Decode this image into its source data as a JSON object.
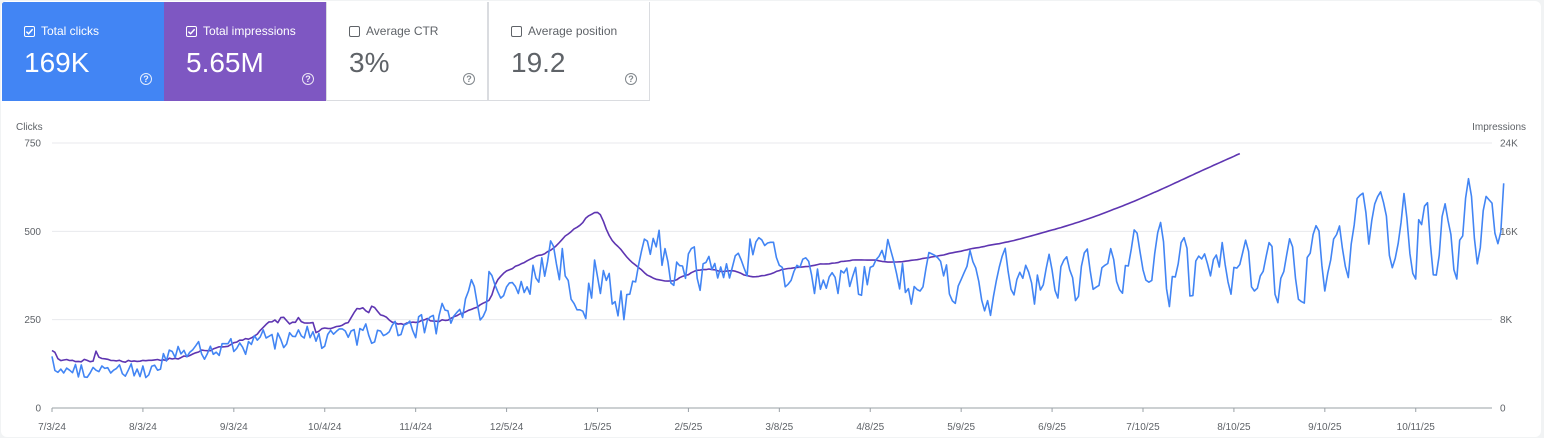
{
  "metrics": [
    {
      "label": "Total clicks",
      "value": "169K",
      "checked": true
    },
    {
      "label": "Total impressions",
      "value": "5.65M",
      "checked": true
    },
    {
      "label": "Average CTR",
      "value": "3%",
      "checked": false
    },
    {
      "label": "Average position",
      "value": "19.2",
      "checked": false
    }
  ],
  "colors": {
    "clicks": "#4285f4",
    "impressions": "#5e35b1",
    "clicks_card": "#4285f4",
    "impressions_card": "#7e57c2"
  },
  "chart_data": {
    "type": "line",
    "left_axis_title": "Clicks",
    "right_axis_title": "Impressions",
    "y_left": {
      "ticks": [
        0,
        250,
        500,
        750
      ],
      "labels": [
        "0",
        "250",
        "500",
        "750"
      ],
      "range": [
        0,
        750
      ]
    },
    "y_right": {
      "ticks": [
        0,
        8000,
        16000,
        24000
      ],
      "labels": [
        "0",
        "8K",
        "16K",
        "24K"
      ],
      "range": [
        0,
        24000
      ]
    },
    "x_labels": [
      "7/3/24",
      "8/3/24",
      "9/3/24",
      "10/4/24",
      "11/4/24",
      "12/5/24",
      "1/5/25",
      "2/5/25",
      "3/8/25",
      "4/8/25",
      "5/9/25",
      "6/9/25",
      "7/10/25",
      "8/10/25",
      "9/10/25",
      "10/11/25"
    ],
    "x_range": [
      "7/3/24",
      "11/6/25"
    ],
    "grid": true,
    "series": [
      {
        "name": "Clicks",
        "axis": "left",
        "x_start": "7/3/24",
        "step_days": 1,
        "values": [
          146,
          106,
          101,
          110,
          99,
          113,
          107,
          100,
          123,
          88,
          122,
          88,
          87,
          99,
          115,
          107,
          103,
          119,
          112,
          114,
          99,
          107,
          112,
          122,
          97,
          90,
          107,
          125,
          91,
          110,
          89,
          119,
          86,
          94,
          118,
          121,
          107,
          110,
          154,
          133,
          164,
          160,
          143,
          174,
          153,
          163,
          145,
          158,
          165,
          176,
          188,
          153,
          138,
          154,
          175,
          152,
          158,
          149,
          182,
          182,
          182,
          196,
          160,
          169,
          184,
          172,
          152,
          188,
          180,
          205,
          192,
          201,
          221,
          198,
          203,
          208,
          167,
          212,
          194,
          171,
          181,
          213,
          203,
          202,
          221,
          204,
          198,
          231,
          199,
          216,
          189,
          211,
          169,
          175,
          208,
          220,
          209,
          217,
          224,
          224,
          218,
          200,
          218,
          222,
          178,
          225,
          220,
          238,
          206,
          183,
          187,
          220,
          218,
          205,
          209,
          216,
          234,
          245,
          205,
          208,
          235,
          238,
          246,
          219,
          199,
          258,
          264,
          213,
          249,
          258,
          262,
          210,
          262,
          296,
          277,
          275,
          240,
          260,
          270,
          279,
          256,
          309,
          331,
          363,
          344,
          294,
          249,
          259,
          278,
          386,
          375,
          349,
          329,
          311,
          318,
          343,
          354,
          355,
          344,
          324,
          358,
          327,
          343,
          322,
          404,
          368,
          356,
          425,
          373,
          415,
          473,
          458,
          408,
          363,
          451,
          374,
          361,
          308,
          296,
          278,
          278,
          274,
          253,
          353,
          311,
          419,
          372,
          324,
          389,
          361,
          381,
          294,
          301,
          261,
          331,
          250,
          321,
          322,
          359,
          357,
          405,
          444,
          478,
          472,
          435,
          480,
          456,
          503,
          404,
          451,
          414,
          354,
          347,
          413,
          403,
          402,
          367,
          436,
          451,
          456,
          367,
          333,
          408,
          412,
          429,
          392,
          409,
          368,
          399,
          369,
          408,
          368,
          399,
          431,
          438,
          419,
          396,
          374,
          478,
          434,
          470,
          482,
          476,
          460,
          467,
          469,
          469,
          426,
          404,
          398,
          343,
          350,
          361,
          387,
          404,
          398,
          421,
          425,
          415,
          376,
          324,
          393,
          336,
          362,
          339,
          371,
          383,
          370,
          324,
          389,
          382,
          396,
          344,
          373,
          398,
          322,
          319,
          400,
          349,
          398,
          402,
          420,
          429,
          446,
          419,
          477,
          446,
          416,
          380,
          337,
          409,
          327,
          338,
          294,
          344,
          335,
          331,
          343,
          396,
          440,
          436,
          432,
          425,
          415,
          374,
          405,
          323,
          303,
          296,
          345,
          364,
          383,
          401,
          446,
          414,
          396,
          358,
          305,
          275,
          304,
          262,
          315,
          361,
          399,
          430,
          452,
          387,
          336,
          320,
          364,
          384,
          367,
          404,
          385,
          354,
          294,
          376,
          334,
          349,
          395,
          435,
          390,
          333,
          311,
          400,
          418,
          428,
          391,
          369,
          304,
          316,
          401,
          439,
          450,
          388,
          336,
          342,
          347,
          397,
          404,
          409,
          451,
          420,
          358,
          335,
          325,
          403,
          402,
          450,
          504,
          495,
          441,
          391,
          362,
          356,
          361,
          437,
          496,
          525,
          471,
          338,
          287,
          372,
          371,
          408,
          468,
          482,
          452,
          317,
          318,
          416,
          430,
          422,
          436,
          408,
          374,
          420,
          433,
          399,
          468,
          407,
          357,
          322,
          398,
          396,
          406,
          440,
          475,
          443,
          343,
          331,
          339,
          374,
          387,
          430,
          468,
          457,
          322,
          298,
          367,
          386,
          434,
          479,
          456,
          367,
          308,
          301,
          297,
          426,
          438,
          491,
          516,
          501,
          403,
          331,
          382,
          419,
          478,
          491,
          515,
          452,
          400,
          369,
          464,
          518,
          593,
          602,
          608,
          553,
          464,
          531,
          577,
          598,
          612,
          582,
          543,
          432,
          397,
          423,
          466,
          526,
          607,
          537,
          437,
          381,
          365,
          533,
          519,
          571,
          581,
          464,
          377,
          376,
          432,
          542,
          578,
          531,
          491,
          391,
          365,
          475,
          487,
          594,
          649,
          599,
          480,
          408,
          454,
          558,
          599,
          589,
          580,
          495,
          465,
          498,
          636
        ]
      },
      {
        "name": "Impressions",
        "axis": "right",
        "x_start": "7/3/24",
        "step_days": 1,
        "values": [
          5212,
          5046,
          4466,
          4290,
          4347,
          4396,
          4298,
          4321,
          4200,
          4220,
          4186,
          4400,
          4311,
          4195,
          4246,
          5142,
          4600,
          4483,
          4452,
          4409,
          4311,
          4301,
          4265,
          4318,
          4202,
          4145,
          4310,
          4217,
          4262,
          4219,
          4239,
          4313,
          4285,
          4316,
          4316,
          4357,
          4396,
          4307,
          4366,
          4306,
          4512,
          4440,
          4497,
          4434,
          4563,
          4708,
          4651,
          4759,
          4892,
          5002,
          5071,
          5248,
          5204,
          5190,
          5186,
          5356,
          5441,
          5539,
          5535,
          5554,
          5590,
          5752,
          5915,
          5964,
          6140,
          6143,
          6283,
          6231,
          6350,
          6515,
          6693,
          7024,
          7296,
          7573,
          7798,
          7807,
          7973,
          7722,
          8190,
          8212,
          7919,
          7615,
          7767,
          7766,
          8191,
          7828,
          7710,
          7690,
          7707,
          7738,
          6830,
          6952,
          7184,
          7241,
          7208,
          7191,
          7281,
          7384,
          7412,
          7499,
          7675,
          7732,
          8181,
          8643,
          9008,
          8972,
          9074,
          8806,
          8637,
          9216,
          9106,
          8769,
          8432,
          8356,
          8232,
          7957,
          7774,
          7728,
          7599,
          7635,
          7555,
          7703,
          7726,
          7780,
          7754,
          7784,
          7929,
          7991,
          8102,
          7894,
          7870,
          7858,
          7823,
          7985,
          7931,
          7949,
          8127,
          8257,
          8354,
          8517,
          8573,
          8705,
          8844,
          8926,
          9045,
          9127,
          9348,
          9490,
          9610,
          9753,
          10245,
          11102,
          11622,
          11928,
          12195,
          12413,
          12518,
          12621,
          12835,
          12924,
          13060,
          13167,
          13330,
          13467,
          13598,
          13743,
          13828,
          13869,
          13965,
          14161,
          14284,
          14477,
          14708,
          14991,
          15283,
          15573,
          15763,
          15970,
          16219,
          16368,
          16546,
          16789,
          17196,
          17403,
          17543,
          17693,
          17714,
          17497,
          16909,
          16196,
          15624,
          15171,
          14867,
          14626,
          14345,
          14006,
          13677,
          13386,
          13143,
          12938,
          12715,
          12512,
          12253,
          12025,
          11911,
          11768,
          11656,
          11610,
          11558,
          11499,
          11496,
          11511,
          11524,
          11611,
          11802,
          11922,
          12007,
          12075,
          12251,
          12383,
          12474,
          12493,
          12530,
          12538,
          12587,
          12536,
          12512,
          12424,
          12358,
          12369,
          12401,
          12424,
          12435,
          12389,
          12289,
          12189,
          12049,
          11992,
          11930,
          11883,
          11894,
          11915,
          11979,
          12001,
          12068,
          12140,
          12232,
          12369,
          12448,
          12549,
          12588,
          12631,
          12651,
          12696,
          12730,
          12753,
          12782,
          12808,
          12819,
          12875,
          12924,
          12991,
          13049,
          13045,
          13052,
          13063,
          13110,
          13131,
          13165,
          13270,
          13286,
          13315,
          13339,
          13405,
          13415,
          13415,
          13416,
          13408,
          13399,
          13404,
          13394,
          13395,
          13334,
          13279,
          13250,
          13217,
          13218,
          13224,
          13219,
          13242,
          13253,
          13291,
          13327,
          13380,
          13407,
          13435,
          13484,
          13548,
          13584,
          13612,
          13682,
          13722,
          13762,
          13821,
          13855,
          13932,
          14014,
          14060,
          14111,
          14155,
          14197,
          14269,
          14327,
          14404,
          14452,
          14499,
          14530,
          14594,
          14632,
          14705,
          14753,
          14795,
          14843,
          14884,
          14945,
          15010,
          15056,
          15117,
          15174,
          15241,
          15302,
          15374,
          15447,
          15524,
          15592,
          15669,
          15740,
          15820,
          15895,
          15967,
          16044,
          16119,
          16187,
          16264,
          16340,
          16419,
          16500,
          16583,
          16668,
          16751,
          16840,
          16927,
          17019,
          17112,
          17203,
          17292,
          17390,
          17482,
          17580,
          17684,
          17785,
          17887,
          17991,
          18094,
          18198,
          18296,
          18405,
          18512,
          18623,
          18731,
          18842,
          18955,
          19073,
          19189,
          19305,
          19425,
          19543,
          19657,
          19777,
          19893,
          20015,
          20136,
          20261,
          20384,
          20505,
          20628,
          20752,
          20876,
          20999,
          21120,
          21243,
          21367,
          21488,
          21608,
          21728,
          21848,
          21967,
          22086,
          22204,
          22324,
          22443,
          22561,
          22680,
          22799,
          22918,
          23037
        ]
      }
    ]
  }
}
